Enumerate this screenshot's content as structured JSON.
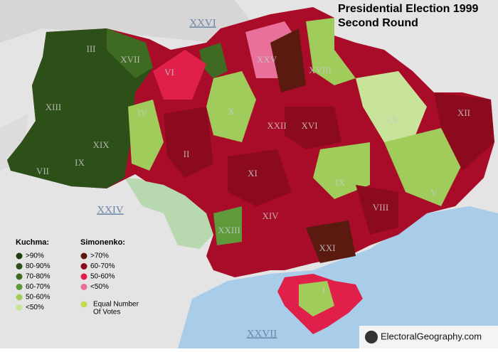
{
  "header": {
    "title": "Presidential Election 1999",
    "subtitle": "Second Round"
  },
  "legend": {
    "kuchma": {
      "heading": "Kuchma:",
      "items": [
        {
          "label": ">90%",
          "color": "#213d10"
        },
        {
          "label": "80-90%",
          "color": "#2d4f18"
        },
        {
          "label": "70-80%",
          "color": "#3f6a22"
        },
        {
          "label": "60-70%",
          "color": "#5e9a3a"
        },
        {
          "label": "50-60%",
          "color": "#9fcc5a"
        },
        {
          "label": "<50%",
          "color": "#c8e49a"
        }
      ]
    },
    "simonenko": {
      "heading": "Simonenko:",
      "items": [
        {
          "label": ">70%",
          "color": "#5a1a10"
        },
        {
          "label": "60-70%",
          "color": "#8c0a1e"
        },
        {
          "label": "50-60%",
          "color": "#e0204a"
        },
        {
          "label": "<50%",
          "color": "#e8709a"
        }
      ]
    },
    "equal": {
      "lines": [
        "Equal Number",
        "Of Votes"
      ],
      "color": "#c5d94a"
    }
  },
  "regions": [
    "III",
    "XVII",
    "XIII",
    "XIX",
    "VII",
    "IX",
    "VI",
    "IV",
    "X",
    "XXV",
    "XVIII",
    "XXII",
    "XVI",
    "XX",
    "XII",
    "II",
    "XI",
    "IX",
    "V",
    "VIII",
    "XIV",
    "XXIII",
    "XXI",
    "I"
  ],
  "outside_labels": [
    "XXVI",
    "XXIV",
    "XXVII"
  ],
  "credit": "ElectoralGeography.com"
}
